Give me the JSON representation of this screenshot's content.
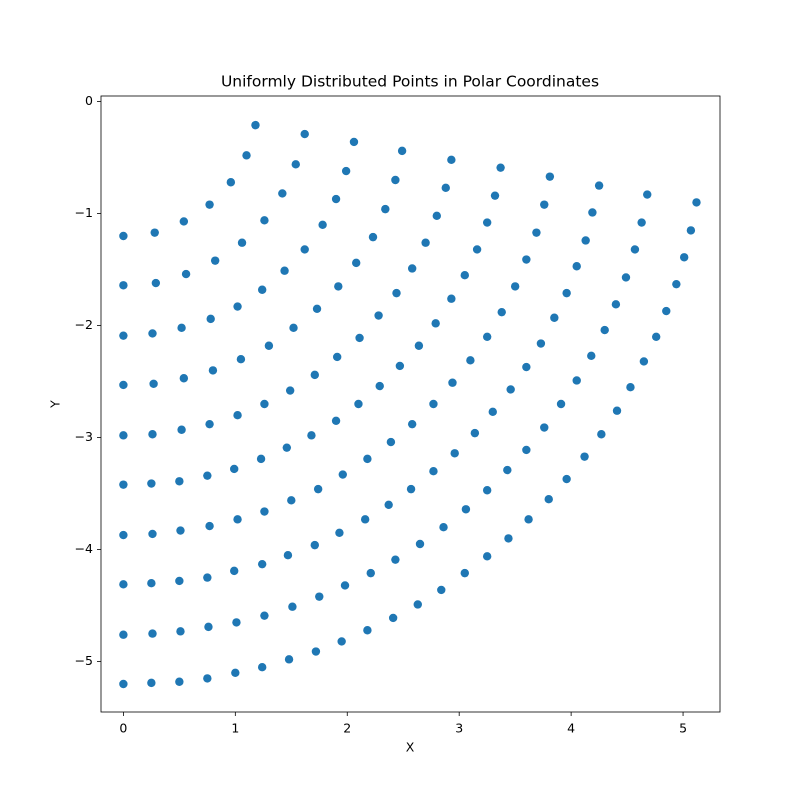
{
  "chart_data": {
    "type": "scatter",
    "title": "Uniformly Distributed Points in Polar Coordinates",
    "xlabel": "X",
    "ylabel": "Y",
    "color": "#1f77b4",
    "xlim": [
      -0.2,
      5.33
    ],
    "ylim": [
      -5.45,
      0.05
    ],
    "xticks": [
      0,
      1,
      2,
      3,
      4,
      5
    ],
    "yticks": [
      0,
      {
        "value": -1,
        "label": "−1"
      },
      {
        "value": -2,
        "label": "−2"
      },
      {
        "value": -3,
        "label": "−3"
      },
      {
        "value": -4,
        "label": "−4"
      },
      {
        "value": -5,
        "label": "−5"
      }
    ],
    "x": [
      0,
      0.28,
      0.54,
      0.77,
      0.96,
      1.1,
      1.18,
      0,
      0.29,
      0.56,
      0.82,
      1.06,
      1.26,
      1.42,
      1.54,
      1.62,
      0,
      0.26,
      0.52,
      0.78,
      1.02,
      1.24,
      1.44,
      1.62,
      1.78,
      1.9,
      1.99,
      2.06,
      0,
      0.27,
      0.54,
      0.8,
      1.05,
      1.3,
      1.52,
      1.73,
      1.92,
      2.08,
      2.23,
      2.34,
      2.43,
      2.49,
      0,
      0.26,
      0.52,
      0.77,
      1.02,
      1.26,
      1.49,
      1.71,
      1.91,
      2.11,
      2.28,
      2.44,
      2.58,
      2.7,
      2.8,
      2.88,
      2.93,
      0,
      0.25,
      0.5,
      0.75,
      0.99,
      1.23,
      1.46,
      1.68,
      1.9,
      2.1,
      2.29,
      2.47,
      2.64,
      2.79,
      2.93,
      3.05,
      3.16,
      3.25,
      3.32,
      3.37,
      0,
      0.26,
      0.51,
      0.77,
      1.02,
      1.26,
      1.5,
      1.74,
      1.96,
      2.18,
      2.39,
      2.58,
      2.77,
      2.94,
      3.1,
      3.25,
      3.38,
      3.5,
      3.6,
      3.69,
      3.76,
      3.81,
      0,
      0.25,
      0.5,
      0.75,
      0.99,
      1.24,
      1.47,
      1.71,
      1.93,
      2.16,
      2.37,
      2.57,
      2.77,
      2.96,
      3.14,
      3.3,
      3.46,
      3.6,
      3.73,
      3.85,
      3.96,
      4.05,
      4.13,
      4.19,
      4.25,
      0,
      0.26,
      0.51,
      0.76,
      1.01,
      1.26,
      1.51,
      1.75,
      1.98,
      2.21,
      2.43,
      2.65,
      2.86,
      3.06,
      3.25,
      3.43,
      3.6,
      3.76,
      3.91,
      4.05,
      4.18,
      4.3,
      4.4,
      4.49,
      4.57,
      4.63,
      4.68,
      0,
      0.25,
      0.5,
      0.75,
      1.0,
      1.24,
      1.48,
      1.72,
      1.95,
      2.18,
      2.41,
      2.63,
      2.84,
      3.05,
      3.25,
      3.44,
      3.62,
      3.8,
      3.96,
      4.12,
      4.27,
      4.41,
      4.53,
      4.65,
      4.76,
      4.85,
      4.94,
      5.01,
      5.07,
      5.12
    ],
    "y": [
      -1.2,
      -1.17,
      -1.07,
      -0.92,
      -0.72,
      -0.48,
      -0.21,
      -1.64,
      -1.62,
      -1.54,
      -1.42,
      -1.26,
      -1.06,
      -0.82,
      -0.56,
      -0.29,
      -2.09,
      -2.07,
      -2.02,
      -1.94,
      -1.83,
      -1.68,
      -1.51,
      -1.32,
      -1.1,
      -0.87,
      -0.62,
      -0.36,
      -2.53,
      -2.52,
      -2.47,
      -2.4,
      -2.3,
      -2.18,
      -2.02,
      -1.85,
      -1.65,
      -1.44,
      -1.21,
      -0.96,
      -0.7,
      -0.44,
      -2.98,
      -2.97,
      -2.93,
      -2.88,
      -2.8,
      -2.7,
      -2.58,
      -2.44,
      -2.28,
      -2.11,
      -1.91,
      -1.71,
      -1.49,
      -1.26,
      -1.02,
      -0.77,
      -0.52,
      -3.42,
      -3.41,
      -3.39,
      -3.34,
      -3.28,
      -3.19,
      -3.09,
      -2.98,
      -2.85,
      -2.7,
      -2.54,
      -2.36,
      -2.18,
      -1.98,
      -1.76,
      -1.55,
      -1.32,
      -1.08,
      -0.84,
      -0.59,
      -3.87,
      -3.86,
      -3.83,
      -3.79,
      -3.73,
      -3.66,
      -3.56,
      -3.46,
      -3.33,
      -3.19,
      -3.04,
      -2.88,
      -2.7,
      -2.51,
      -2.31,
      -2.1,
      -1.88,
      -1.65,
      -1.41,
      -1.17,
      -0.92,
      -0.67,
      -4.31,
      -4.3,
      -4.28,
      -4.25,
      -4.19,
      -4.13,
      -4.05,
      -3.96,
      -3.85,
      -3.73,
      -3.6,
      -3.46,
      -3.3,
      -3.14,
      -2.96,
      -2.77,
      -2.57,
      -2.37,
      -2.16,
      -1.93,
      -1.71,
      -1.47,
      -1.24,
      -0.99,
      -0.75,
      -4.76,
      -4.75,
      -4.73,
      -4.69,
      -4.65,
      -4.59,
      -4.51,
      -4.42,
      -4.32,
      -4.21,
      -4.09,
      -3.95,
      -3.8,
      -3.64,
      -3.47,
      -3.29,
      -3.11,
      -2.91,
      -2.7,
      -2.49,
      -2.27,
      -2.04,
      -1.81,
      -1.57,
      -1.32,
      -1.08,
      -0.83,
      -5.2,
      -5.19,
      -5.18,
      -5.15,
      -5.1,
      -5.05,
      -4.98,
      -4.91,
      -4.82,
      -4.72,
      -4.61,
      -4.49,
      -4.36,
      -4.21,
      -4.06,
      -3.9,
      -3.73,
      -3.55,
      -3.37,
      -3.17,
      -2.97,
      -2.76,
      -2.55,
      -2.32,
      -2.1,
      -1.87,
      -1.63,
      -1.39,
      -1.15,
      -0.9
    ]
  }
}
